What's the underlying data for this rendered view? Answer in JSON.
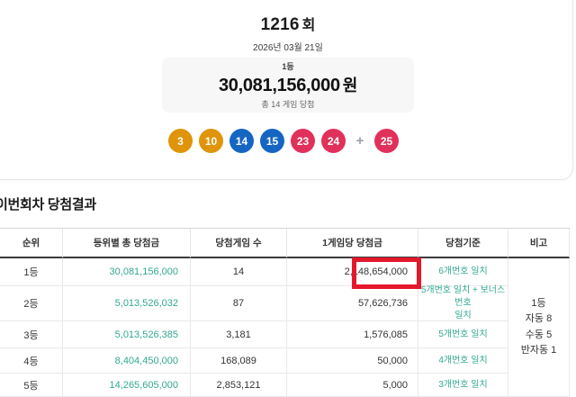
{
  "header": {
    "round": "1216",
    "round_suffix": "회",
    "date": "2026년 03월 21일"
  },
  "prize": {
    "rank_label": "1등",
    "amount": "30,081,156,000",
    "currency": "원",
    "winners_note": "총 14 게임 당첨"
  },
  "balls": {
    "numbers": [
      {
        "value": "3",
        "color": "#df940a"
      },
      {
        "value": "10",
        "color": "#df940a"
      },
      {
        "value": "14",
        "color": "#1565c3"
      },
      {
        "value": "15",
        "color": "#1565c3"
      },
      {
        "value": "23",
        "color": "#e1315a"
      },
      {
        "value": "24",
        "color": "#e1315a"
      }
    ],
    "plus": "+",
    "bonus": {
      "value": "25",
      "color": "#e1315a"
    }
  },
  "results": {
    "title": "이번회차 당첨결과",
    "columns": [
      "순위",
      "등위별 총 당첨금",
      "당첨게임 수",
      "1게임당 당첨금",
      "당첨기준",
      "비고"
    ],
    "rows": [
      {
        "rank": "1등",
        "total": "30,081,156,000",
        "games": "14",
        "per_game": "2,148,654,000",
        "criteria": "6개번호 일치",
        "highlight": true
      },
      {
        "rank": "2등",
        "total": "5,013,526,032",
        "games": "87",
        "per_game": "57,626,736",
        "criteria": "5개번호 일치 + 보너스번호\n일치"
      },
      {
        "rank": "3등",
        "total": "5,013,526,385",
        "games": "3,181",
        "per_game": "1,576,085",
        "criteria": "5개번호 일치"
      },
      {
        "rank": "4등",
        "total": "8,404,450,000",
        "games": "168,089",
        "per_game": "50,000",
        "criteria": "4개번호 일치"
      },
      {
        "rank": "5등",
        "total": "14,265,605,000",
        "games": "2,853,121",
        "per_game": "5,000",
        "criteria": "3개번호 일치"
      }
    ],
    "note_lines": [
      "1등",
      "자동 8",
      "수동 5",
      "반자동 1"
    ]
  },
  "colors": {
    "teal_text": "#32a893",
    "highlight_red": "#e5182b",
    "ball_orange": "#df940a",
    "ball_blue": "#1565c3",
    "ball_red": "#e1315a"
  }
}
